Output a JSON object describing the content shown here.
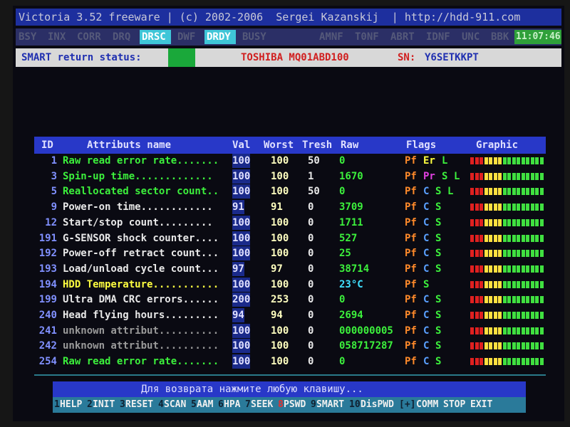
{
  "header": {
    "title": "Victoria 3.52 freeware | (c) 2002-2006  Sergei Kazanskij  | http://hdd-911.com"
  },
  "status": {
    "flags": [
      {
        "text": "BSY",
        "active": false
      },
      {
        "text": "INX",
        "active": false
      },
      {
        "text": "CORR",
        "active": false
      },
      {
        "text": "DRQ",
        "active": false
      },
      {
        "text": "DRSC",
        "active": true
      },
      {
        "text": "DWF",
        "active": false
      },
      {
        "text": "DRDY",
        "active": true
      },
      {
        "text": "BUSY",
        "active": false
      },
      {
        "text": "AMNF",
        "active": false
      },
      {
        "text": "T0NF",
        "active": false
      },
      {
        "text": "ABRT",
        "active": false
      },
      {
        "text": "IDNF",
        "active": false
      },
      {
        "text": "UNC",
        "active": false
      },
      {
        "text": "BBK",
        "active": false
      }
    ],
    "time": "11:07:46"
  },
  "smart": {
    "label": "SMART return status:",
    "model": "TOSHIBA MQ01ABD100",
    "sn_label": "SN:",
    "serial": "Y6SETKKPT"
  },
  "table": {
    "columns": [
      "ID",
      "Attributs name",
      "Val",
      "Worst",
      "Tresh",
      "Raw",
      "Flags",
      "Graphic"
    ],
    "rows": [
      {
        "id": 1,
        "name": "Raw read error rate.......",
        "color": "#3cf03c",
        "val": 100,
        "worst": 100,
        "tresh": 50,
        "raw": "0",
        "raw_color": "#3cf03c",
        "flags": [
          {
            "text": "Pf",
            "color": "#ff8a2a"
          },
          {
            "text": "Er",
            "color": "#ffff40"
          },
          {
            "text": "L",
            "color": "#3cf03c"
          }
        ]
      },
      {
        "id": 3,
        "name": "Spin-up time.............",
        "color": "#3cf03c",
        "val": 100,
        "worst": 100,
        "tresh": 1,
        "raw": "1670",
        "raw_color": "#3cf03c",
        "flags": [
          {
            "text": "Pf",
            "color": "#ff8a2a"
          },
          {
            "text": "Pr",
            "color": "#e040e0"
          },
          {
            "text": "S",
            "color": "#3cf03c"
          },
          {
            "text": "L",
            "color": "#3cf03c"
          }
        ]
      },
      {
        "id": 5,
        "name": "Reallocated sector count..",
        "color": "#3cf03c",
        "val": 100,
        "worst": 100,
        "tresh": 50,
        "raw": "0",
        "raw_color": "#3cf03c",
        "flags": [
          {
            "text": "Pf",
            "color": "#ff8a2a"
          },
          {
            "text": "C",
            "color": "#5aa0ff"
          },
          {
            "text": "S",
            "color": "#3cf03c"
          },
          {
            "text": "L",
            "color": "#3cf03c"
          }
        ]
      },
      {
        "id": 9,
        "name": "Power-on time............",
        "color": "#e8e8e8",
        "val": 91,
        "worst": 91,
        "tresh": 0,
        "raw": "3709",
        "raw_color": "#3cf03c",
        "flags": [
          {
            "text": "Pf",
            "color": "#ff8a2a"
          },
          {
            "text": "C",
            "color": "#5aa0ff"
          },
          {
            "text": "S",
            "color": "#3cf03c"
          }
        ]
      },
      {
        "id": 12,
        "name": "Start/stop count.........",
        "color": "#e8e8e8",
        "val": 100,
        "worst": 100,
        "tresh": 0,
        "raw": "1711",
        "raw_color": "#3cf03c",
        "flags": [
          {
            "text": "Pf",
            "color": "#ff8a2a"
          },
          {
            "text": "C",
            "color": "#5aa0ff"
          },
          {
            "text": "S",
            "color": "#3cf03c"
          }
        ]
      },
      {
        "id": 191,
        "name": "G-SENSOR shock counter....",
        "color": "#e8e8e8",
        "val": 100,
        "worst": 100,
        "tresh": 0,
        "raw": "527",
        "raw_color": "#3cf03c",
        "flags": [
          {
            "text": "Pf",
            "color": "#ff8a2a"
          },
          {
            "text": "C",
            "color": "#5aa0ff"
          },
          {
            "text": "S",
            "color": "#3cf03c"
          }
        ]
      },
      {
        "id": 192,
        "name": "Power-off retract count...",
        "color": "#e8e8e8",
        "val": 100,
        "worst": 100,
        "tresh": 0,
        "raw": "25",
        "raw_color": "#3cf03c",
        "flags": [
          {
            "text": "Pf",
            "color": "#ff8a2a"
          },
          {
            "text": "C",
            "color": "#5aa0ff"
          },
          {
            "text": "S",
            "color": "#3cf03c"
          }
        ]
      },
      {
        "id": 193,
        "name": "Load/unload cycle count...",
        "color": "#e8e8e8",
        "val": 97,
        "worst": 97,
        "tresh": 0,
        "raw": "38714",
        "raw_color": "#3cf03c",
        "flags": [
          {
            "text": "Pf",
            "color": "#ff8a2a"
          },
          {
            "text": "C",
            "color": "#5aa0ff"
          },
          {
            "text": "S",
            "color": "#3cf03c"
          }
        ]
      },
      {
        "id": 194,
        "name": "HDD Temperature...........",
        "color": "#ffff40",
        "val": 100,
        "worst": 100,
        "tresh": 0,
        "raw": "23°C",
        "raw_color": "#40e0ff",
        "flags": [
          {
            "text": "Pf",
            "color": "#ff8a2a"
          },
          {
            "text": "S",
            "color": "#3cf03c"
          }
        ]
      },
      {
        "id": 199,
        "name": "Ultra DMA CRC errors......",
        "color": "#e8e8e8",
        "val": 200,
        "worst": 253,
        "tresh": 0,
        "raw": "0",
        "raw_color": "#3cf03c",
        "flags": [
          {
            "text": "Pf",
            "color": "#ff8a2a"
          },
          {
            "text": "C",
            "color": "#5aa0ff"
          },
          {
            "text": "S",
            "color": "#3cf03c"
          }
        ]
      },
      {
        "id": 240,
        "name": "Head flying hours.........",
        "color": "#e8e8e8",
        "val": 94,
        "worst": 94,
        "tresh": 0,
        "raw": "2694",
        "raw_color": "#3cf03c",
        "flags": [
          {
            "text": "Pf",
            "color": "#ff8a2a"
          },
          {
            "text": "C",
            "color": "#5aa0ff"
          },
          {
            "text": "S",
            "color": "#3cf03c"
          }
        ]
      },
      {
        "id": 241,
        "name": "unknown attribut..........",
        "color": "#9a9a9a",
        "val": 100,
        "worst": 100,
        "tresh": 0,
        "raw": "000000005",
        "raw_color": "#3cf03c",
        "flags": [
          {
            "text": "Pf",
            "color": "#ff8a2a"
          },
          {
            "text": "C",
            "color": "#5aa0ff"
          },
          {
            "text": "S",
            "color": "#3cf03c"
          }
        ]
      },
      {
        "id": 242,
        "name": "unknown attribut..........",
        "color": "#9a9a9a",
        "val": 100,
        "worst": 100,
        "tresh": 0,
        "raw": "058717287",
        "raw_color": "#3cf03c",
        "flags": [
          {
            "text": "Pf",
            "color": "#ff8a2a"
          },
          {
            "text": "C",
            "color": "#5aa0ff"
          },
          {
            "text": "S",
            "color": "#3cf03c"
          }
        ]
      },
      {
        "id": 254,
        "name": "Raw read error rate.......",
        "color": "#3cf03c",
        "val": 100,
        "worst": 100,
        "tresh": 0,
        "raw": "0",
        "raw_color": "#3cf03c",
        "flags": [
          {
            "text": "Pf",
            "color": "#ff8a2a"
          },
          {
            "text": "C",
            "color": "#5aa0ff"
          },
          {
            "text": "S",
            "color": "#3cf03c"
          }
        ]
      }
    ]
  },
  "footer": {
    "message": "Для возврата нажмите любую клавишу...",
    "keys": [
      {
        "num": "1",
        "label": "HELP"
      },
      {
        "num": "2",
        "label": "INIT"
      },
      {
        "num": "3",
        "label": "RESET"
      },
      {
        "num": "4",
        "label": "SCAN"
      },
      {
        "num": "5",
        "label": "AAM"
      },
      {
        "num": "6",
        "label": "HPA"
      },
      {
        "num": "7",
        "label": "SEEK"
      },
      {
        "num": "8",
        "label": "PSWD"
      },
      {
        "num": "9",
        "label": "SMART"
      },
      {
        "num": "10",
        "label": "DisPWD"
      },
      {
        "num": "[+]",
        "label": "COMM"
      },
      {
        "label": "STOP"
      },
      {
        "label": "EXIT"
      }
    ]
  }
}
